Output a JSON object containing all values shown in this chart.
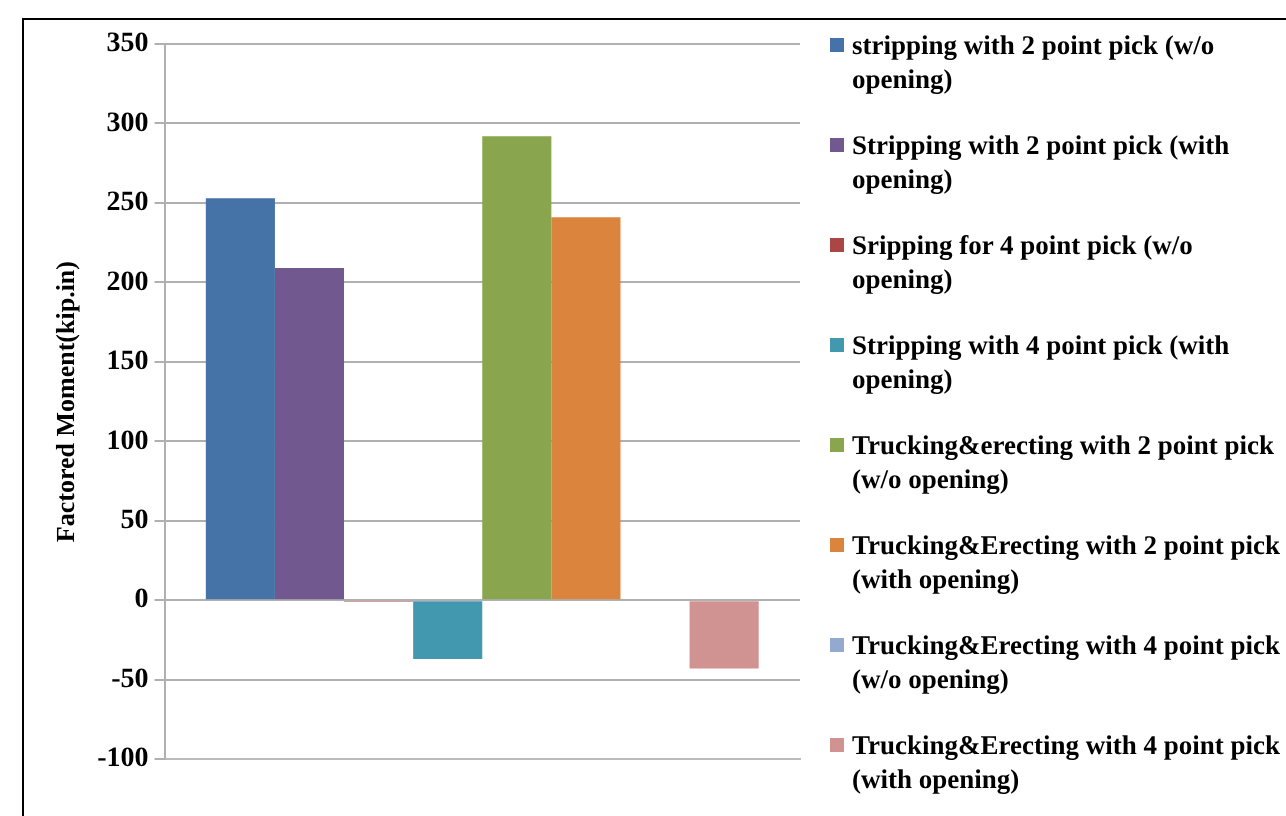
{
  "chart_data": {
    "type": "bar",
    "ylabel": "Factored Moment(kip.in)",
    "categories": [
      null
    ],
    "series": [
      {
        "name": "stripping with 2 point pick (w/o opening)",
        "color": "#4572a7",
        "values": [
          253
        ]
      },
      {
        "name": "Stripping with 2 point pick (with opening)",
        "color": "#71588f",
        "values": [
          209
        ]
      },
      {
        "name": "Sripping for 4 point pick (w/o opening)",
        "color": "#aa4643",
        "values": [
          -1
        ]
      },
      {
        "name": "Stripping with 4 point pick (with opening)",
        "color": "#4198af",
        "values": [
          -37
        ]
      },
      {
        "name": "Trucking&erecting with 2 point pick (w/o opening)",
        "color": "#89a54e",
        "values": [
          292
        ]
      },
      {
        "name": "Trucking&Erecting with 2 point pick (with opening)",
        "color": "#db843d",
        "values": [
          241
        ]
      },
      {
        "name": "Trucking&Erecting with 4 point pick (w/o opening)",
        "color": "#93a9cf",
        "values": [
          0
        ]
      },
      {
        "name": "Trucking&Erecting with 4 point pick (with opening)",
        "color": "#d19392",
        "values": [
          -43
        ]
      }
    ],
    "ylim": [
      -100,
      350
    ],
    "yticks": [
      -100,
      -50,
      0,
      50,
      100,
      150,
      200,
      250,
      300,
      350
    ],
    "grid": "y",
    "legend": "right"
  }
}
